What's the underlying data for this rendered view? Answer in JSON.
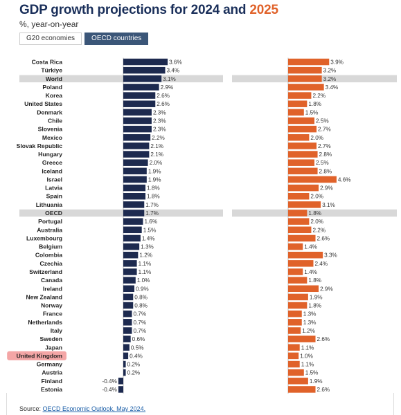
{
  "title": {
    "prefix": "GDP growth projections for ",
    "year_a": "2024",
    "connector": " and ",
    "year_b": "2025"
  },
  "subtitle": "%, year-on-year",
  "tabs": [
    {
      "label": "G20 economies",
      "active": false
    },
    {
      "label": "OECD countries",
      "active": true
    }
  ],
  "source": {
    "prefix": "Source: ",
    "link": "OECD Economic Outlook, May 2024."
  },
  "colors": {
    "series_2024": "#1d2a4f",
    "series_2025": "#e0622a",
    "highlight_row": "#d8d8d8",
    "selected_label_bg": "#f4a6a6",
    "axis": "#999999"
  },
  "chart_data": {
    "type": "bar",
    "orientation": "horizontal",
    "value_suffix": "%",
    "highlight_rows": [
      "World",
      "OECD"
    ],
    "selected_category": "United Kingdom",
    "categories": [
      "Costa Rica",
      "Türkiye",
      "World",
      "Poland",
      "Korea",
      "United States",
      "Denmark",
      "Chile",
      "Slovenia",
      "Mexico",
      "Slovak Republic",
      "Hungary",
      "Greece",
      "Iceland",
      "Israel",
      "Latvia",
      "Spain",
      "Lithuania",
      "OECD",
      "Portugal",
      "Australia",
      "Luxembourg",
      "Belgium",
      "Colombia",
      "Czechia",
      "Switzerland",
      "Canada",
      "Ireland",
      "New Zealand",
      "Norway",
      "France",
      "Netherlands",
      "Italy",
      "Sweden",
      "Japan",
      "United Kingdom",
      "Germany",
      "Austria",
      "Finland",
      "Estonia"
    ],
    "series": [
      {
        "values": [
          3.6,
          3.4,
          3.1,
          2.9,
          2.6,
          2.6,
          2.3,
          2.3,
          2.3,
          2.2,
          2.1,
          2.1,
          2.0,
          1.9,
          1.9,
          1.8,
          1.8,
          1.7,
          1.7,
          1.6,
          1.5,
          1.4,
          1.3,
          1.2,
          1.1,
          1.1,
          1.0,
          0.9,
          0.8,
          0.8,
          0.7,
          0.7,
          0.7,
          0.6,
          0.5,
          0.4,
          0.2,
          0.2,
          -0.4,
          -0.4
        ]
      },
      {
        "values": [
          3.9,
          3.2,
          3.2,
          3.4,
          2.2,
          1.8,
          1.5,
          2.5,
          2.7,
          2.0,
          2.7,
          2.8,
          2.5,
          2.8,
          4.6,
          2.9,
          2.0,
          3.1,
          1.8,
          2.0,
          2.2,
          2.6,
          1.4,
          3.3,
          2.4,
          1.4,
          1.8,
          2.9,
          1.9,
          1.8,
          1.3,
          1.3,
          1.2,
          2.6,
          1.1,
          1.0,
          1.1,
          1.5,
          1.9,
          2.6
        ]
      }
    ]
  }
}
